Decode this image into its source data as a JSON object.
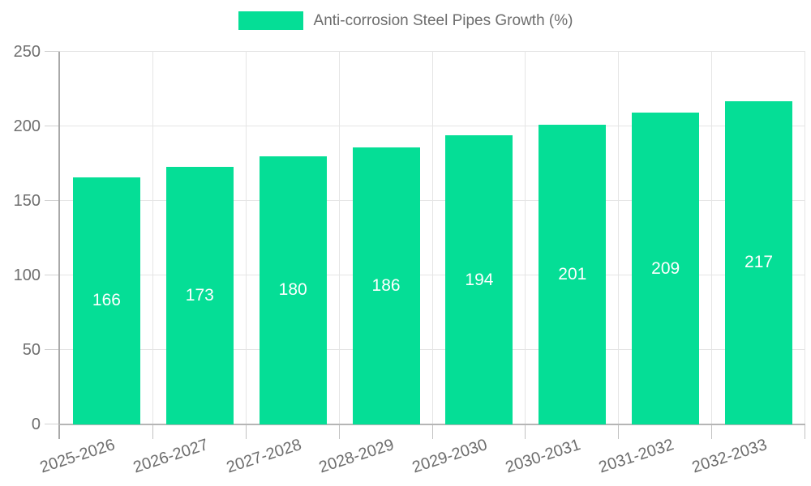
{
  "legend": {
    "label": "Anti-corrosion Steel Pipes Growth (%)",
    "swatch_color": "#05DE96"
  },
  "chart_data": {
    "type": "bar",
    "title": "Anti-corrosion Steel Pipes Growth (%)",
    "categories": [
      "2025-2026",
      "2026-2027",
      "2027-2028",
      "2028-2029",
      "2029-2030",
      "2030-2031",
      "2031-2032",
      "2032-2033"
    ],
    "values": [
      166,
      173,
      180,
      186,
      194,
      201,
      209,
      217
    ],
    "series_name": "Anti-corrosion Steel Pipes Growth (%)",
    "xlabel": "",
    "ylabel": "",
    "ylim": [
      0,
      250
    ],
    "yticks": [
      0,
      50,
      100,
      150,
      200,
      250
    ],
    "grid": true,
    "legend_position": "top",
    "bar_color": "#05DE96",
    "value_label_color": "#ffffff",
    "axis_text_color": "#6e6e6e"
  }
}
